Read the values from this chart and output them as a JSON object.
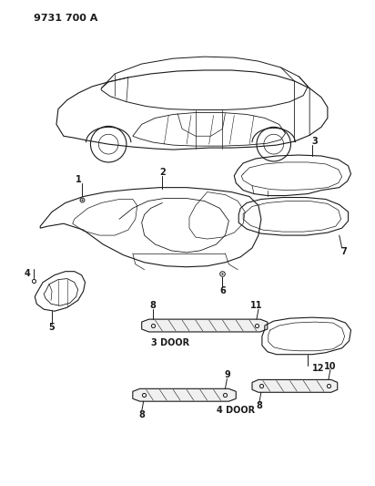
{
  "title": "9731 700 A",
  "bg_color": "#ffffff",
  "line_color": "#1a1a1a",
  "fig_width": 4.12,
  "fig_height": 5.33,
  "dpi": 100
}
